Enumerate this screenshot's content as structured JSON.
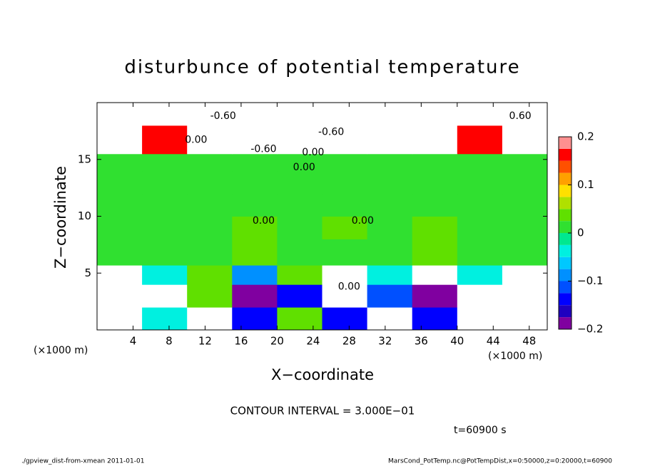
{
  "chart_data": {
    "type": "heatmap",
    "title": "disturbunce of potential temperature",
    "xlabel": "X−coordinate",
    "ylabel": "Z−coordinate",
    "x_unit": "(×1000 m)",
    "xlim": [
      0,
      50
    ],
    "ylim": [
      0,
      20
    ],
    "xticks": [
      4,
      8,
      12,
      16,
      20,
      24,
      28,
      32,
      36,
      40,
      44,
      48
    ],
    "yticks": [
      5,
      10,
      15
    ],
    "x_edges": [
      0,
      5,
      10,
      15,
      20,
      25,
      30,
      35,
      40,
      45,
      50
    ],
    "z_edges": [
      0,
      2,
      4,
      5.7,
      8,
      10,
      12,
      14,
      15.5,
      18,
      20
    ],
    "values": [
      [
        0.3,
        -0.05,
        0.3,
        -0.15,
        0.03,
        -0.15,
        0.3,
        -0.15,
        0.3,
        0.3
      ],
      [
        0.3,
        0.3,
        0.03,
        -0.18,
        -0.15,
        0.3,
        -0.12,
        -0.18,
        0.3,
        0.3
      ],
      [
        0.3,
        -0.05,
        0.03,
        -0.08,
        0.03,
        0.3,
        -0.05,
        0.3,
        -0.05,
        0.3
      ],
      [
        0,
        0,
        0,
        0.03,
        0,
        0,
        0,
        0.03,
        0,
        0
      ],
      [
        0,
        0,
        0,
        0.03,
        0,
        0.03,
        0,
        0.03,
        0,
        0
      ],
      [
        0,
        0,
        0,
        0,
        0,
        0,
        0,
        0,
        0,
        0
      ],
      [
        0,
        0,
        0,
        0,
        0,
        0,
        0,
        0,
        0,
        0
      ],
      [
        0,
        0,
        0,
        0,
        0,
        0,
        0,
        0,
        0,
        0
      ],
      [
        -0.3,
        0.15,
        -0.3,
        -0.3,
        -0.3,
        -0.3,
        -0.3,
        -0.3,
        0.15,
        -0.3
      ],
      [
        -0.3,
        -0.3,
        -0.3,
        -0.3,
        -0.3,
        -0.3,
        -0.3,
        -0.3,
        -0.3,
        -0.3
      ]
    ],
    "colorbar": {
      "levels": [
        -0.2,
        -0.175,
        -0.15,
        -0.125,
        -0.1,
        -0.075,
        -0.05,
        -0.025,
        0,
        0.025,
        0.05,
        0.075,
        0.1,
        0.125,
        0.15,
        0.175,
        0.2
      ],
      "colors": [
        "#8000a0",
        "#2000c0",
        "#0000ff",
        "#0050ff",
        "#0090ff",
        "#00c8ff",
        "#00f0e0",
        "#00e890",
        "#30e030",
        "#60e000",
        "#b0e000",
        "#ffe000",
        "#ffa000",
        "#ff5000",
        "#ff0000",
        "#ff9090"
      ],
      "ticks": [
        {
          "value": -0.2,
          "label": "−0.2"
        },
        {
          "value": -0.1,
          "label": "−0.1"
        },
        0,
        0.1,
        0.2
      ]
    },
    "annotations": [
      {
        "text": "0.00",
        "x": 23,
        "z": 14.3
      },
      {
        "text": "0.00",
        "x": 18.5,
        "z": 9.6
      },
      {
        "text": "0.00",
        "x": 29.5,
        "z": 9.6
      },
      {
        "text": "0.00",
        "x": 28,
        "z": 3.8
      },
      {
        "text": "0.00",
        "x": 11,
        "z": 16.7
      },
      {
        "text": "0.00",
        "x": 24,
        "z": 15.6
      },
      {
        "text": "-0.60",
        "x": 26,
        "z": 17.4
      },
      {
        "text": "-0.60",
        "x": 14,
        "z": 18.8
      },
      {
        "text": "-0.60",
        "x": 18.5,
        "z": 15.9
      },
      {
        "text": "0.60",
        "x": 47,
        "z": 18.8
      }
    ],
    "contour_interval": "CONTOUR INTERVAL = 3.000E−01",
    "time_label": "t=60900 s",
    "footer_left": "./gpview_dist-from-xmean   2011-01-01",
    "footer_right": "MarsCond_PotTemp.nc@PotTempDist,x=0:50000,z=0:20000,t=60900"
  }
}
